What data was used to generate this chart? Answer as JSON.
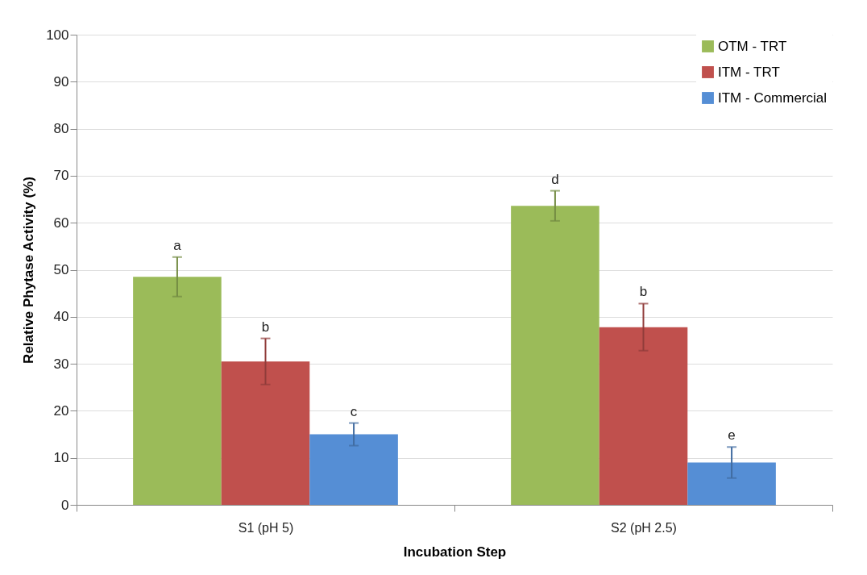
{
  "chart_data": {
    "type": "bar",
    "xlabel": "Incubation Step",
    "ylabel": "Relative Phytase Activity (%)",
    "categories": [
      "S1 (pH 5)",
      "S2 (pH 2.5)"
    ],
    "series": [
      {
        "name": "OTM - TRT",
        "color": "#9bbb59",
        "values": [
          48.5,
          63.6
        ],
        "errors": [
          4.2,
          3.2
        ],
        "value_labels": [
          "a",
          "d"
        ]
      },
      {
        "name": "ITM - TRT",
        "color": "#c0504d",
        "values": [
          30.5,
          37.8
        ],
        "errors": [
          4.9,
          5.0
        ],
        "value_labels": [
          "b",
          "b"
        ]
      },
      {
        "name": "ITM - Commercial",
        "color": "#558ed5",
        "values": [
          15.0,
          9.0
        ],
        "errors": [
          2.4,
          3.3
        ],
        "value_labels": [
          "c",
          "e"
        ]
      }
    ],
    "ylim": [
      0,
      100
    ],
    "yticks": [
      0,
      10,
      20,
      30,
      40,
      50,
      60,
      70,
      80,
      90,
      100
    ],
    "grid": "y",
    "legend": "top right"
  }
}
